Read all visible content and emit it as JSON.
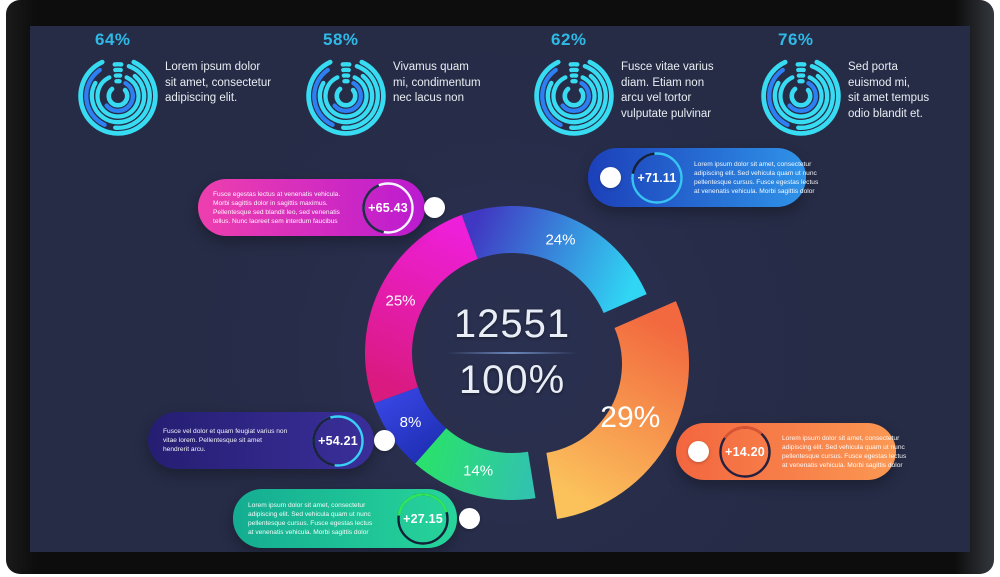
{
  "stats": [
    {
      "percent": "64%",
      "text": "Lorem ipsum dolor\nsit amet, consectetur\nadipiscing elit."
    },
    {
      "percent": "58%",
      "text": "Vivamus quam\nmi, condimentum\nnec lacus non"
    },
    {
      "percent": "62%",
      "text": "Fusce vitae varius\ndiam.  Etiam non\narcu vel tortor\nvulputate pulvinar"
    },
    {
      "percent": "76%",
      "text": "Sed porta\neuismod mi,\nsit amet tempus\nodio blandit et."
    }
  ],
  "icon_colors": {
    "cyan": "#38dcf2",
    "blue": "#2d7ff2"
  },
  "chart_data": {
    "type": "pie",
    "subtype": "donut-exploded",
    "center_value": "12551",
    "center_percent": "100%",
    "start_angle_deg": -20,
    "segments": [
      {
        "label": "24%",
        "value": 24,
        "colors": [
          "#4038c2",
          "#30d6f4"
        ],
        "explode": false
      },
      {
        "label": "29%",
        "value": 29,
        "colors": [
          "#f2693f",
          "#fbc25c"
        ],
        "explode": true
      },
      {
        "label": "14%",
        "value": 14,
        "colors": [
          "#31c3ae",
          "#2ae06e"
        ],
        "explode": false
      },
      {
        "label": "8%",
        "value": 8,
        "colors": [
          "#2131b8",
          "#3644e0"
        ],
        "explode": false
      },
      {
        "label": "25%",
        "value": 25,
        "colors": [
          "#d91a7e",
          "#ee1fd8"
        ],
        "explode": false
      }
    ]
  },
  "cards": [
    {
      "value": "+65.43",
      "text": "Fusce egestas lectus at venenatis vehicula.\nMorbi sagittis dolor in sagittis maximus.\nPellentesque sed blandit leo, sed venenatis\ntellus. Nunc laoreet sem interdum faucibus",
      "gradient": [
        "#ee3fae",
        "#bb1bd0"
      ],
      "ring": {
        "base": "#f4f6ff",
        "arc_color": "#232a4a",
        "arc_start": 190,
        "arc_end": 338
      }
    },
    {
      "value": "+71.11",
      "text": "Lorem ipsum dolor sit amet, consectetur\nadipiscing elit. Sed vehicula quam ut nunc\npellentesque cursus. Fusce egestas lectus\nat venenatis vehicula. Morbi sagittis dolor",
      "gradient": [
        "#1c40ba",
        "#2f93e8"
      ],
      "ring": {
        "base": "#38c4f2",
        "arc_color": "#16203c",
        "arc_start": -80,
        "arc_end": -6
      }
    },
    {
      "value": "+54.21",
      "text": "Fusce vel dolor et quam feugiat varius non\nvitae lorem. Pellentesque sit amet\nhendrerit arcu.",
      "gradient": [
        "#251e72",
        "#3a2f9a"
      ],
      "ring": {
        "base": "#38d0f5",
        "arc_color": "#1c2240",
        "arc_start": 188,
        "arc_end": 342
      }
    },
    {
      "value": "+27.15",
      "text": "Lorem ipsum dolor sit amet, consectetur\nadipiscing elit. Sed vehicula quam ut nunc\npellentesque cursus. Fusce egestas lectus\nat venenatis vehicula. Morbi sagittis dolor",
      "gradient": [
        "#14ad92",
        "#27d49a"
      ],
      "ring": {
        "base": "#132036",
        "arc_color": "#2ee55c",
        "arc_start": -82,
        "arc_end": 74
      }
    },
    {
      "value": "+14.20",
      "text": "Lorem ipsum dolor sit amet, consectetur\nadipiscing elit. Sed vehicula quam ut nunc\npellentesque cursus. Fusce egestas lectus\nat venenatis vehicula. Morbi sagittis dolor",
      "gradient": [
        "#f3663f",
        "#fb9853"
      ],
      "ring": {
        "base": "#25203e",
        "arc_color": "#d85432",
        "arc_start": -55,
        "arc_end": 42
      }
    }
  ]
}
